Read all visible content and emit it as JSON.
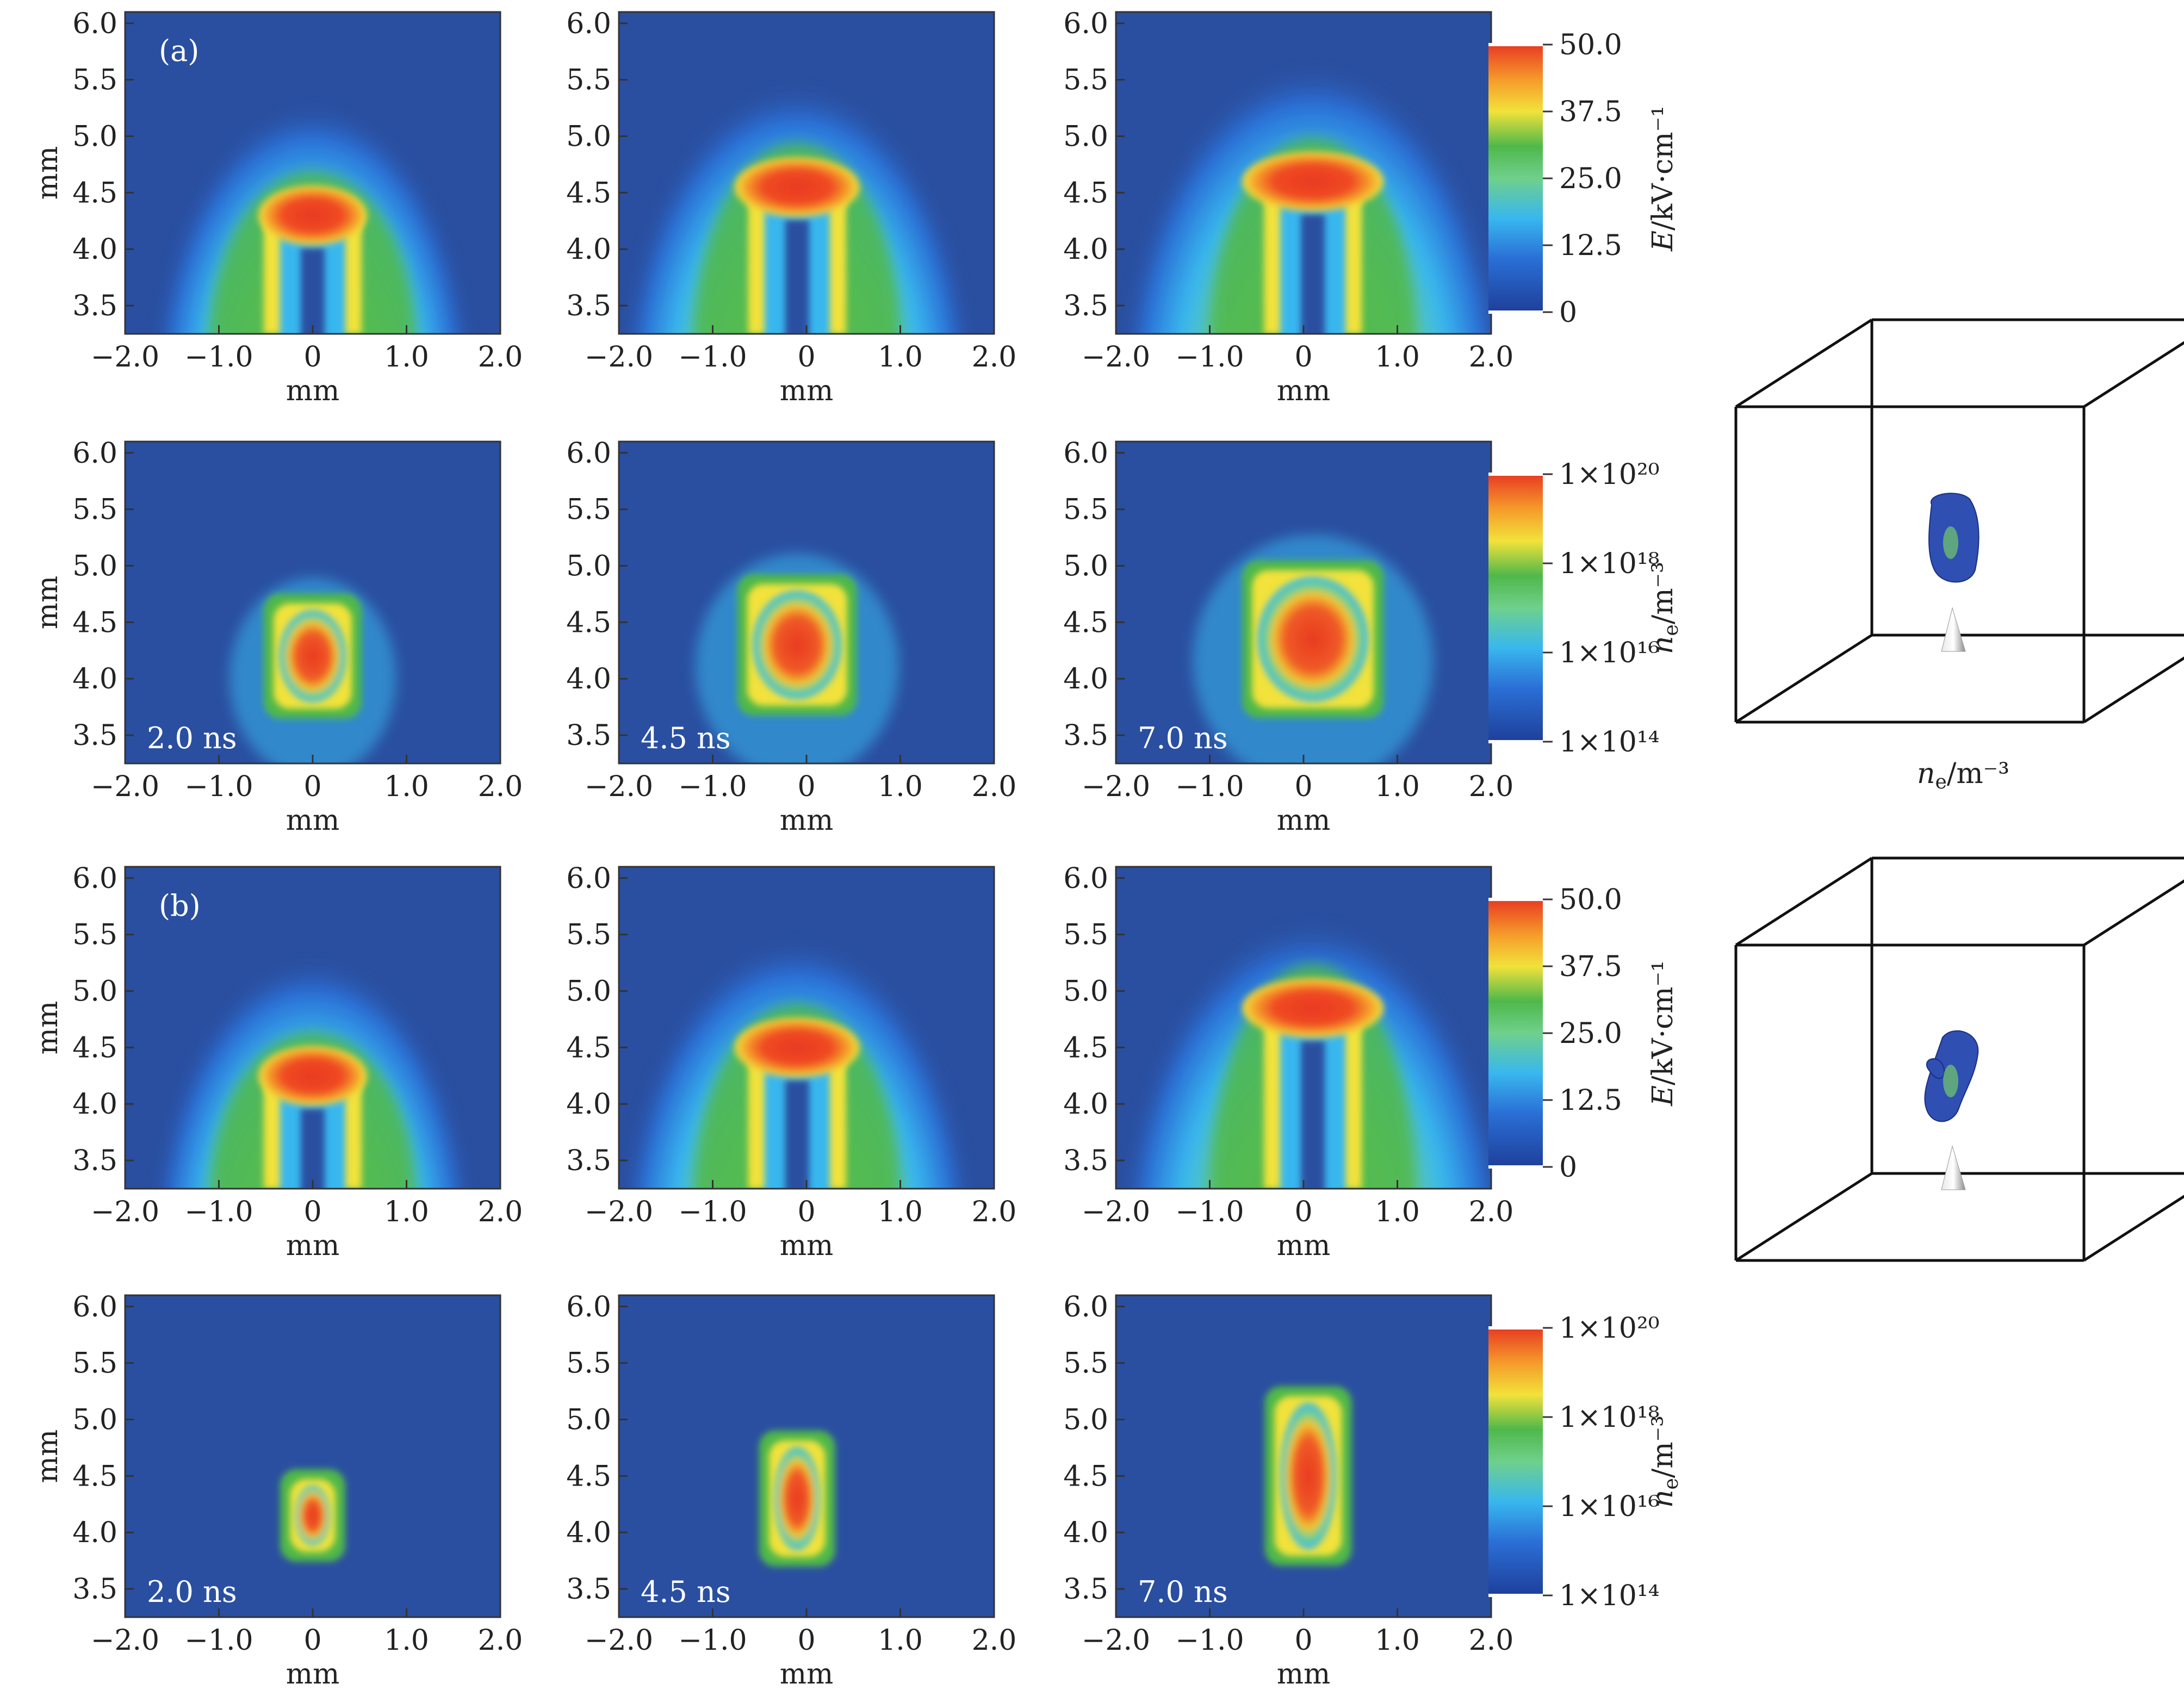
{
  "figure": {
    "panel_letters": [
      "(a)",
      "(b)"
    ],
    "time_labels": [
      "2.0 ns",
      "4.5 ns",
      "7.0 ns"
    ],
    "x_axis_label": "mm",
    "y_axis_label": "mm",
    "x_ticks": [
      "−2.0",
      "−1.0",
      "0",
      "1.0",
      "2.0"
    ],
    "y_ticks": [
      "6.0",
      "5.5",
      "5.0",
      "4.5",
      "4.0",
      "3.5"
    ],
    "field_colorbar": {
      "label_var": "E",
      "label_unit": "/kV·cm⁻¹",
      "ticks": [
        "50.0",
        "37.5",
        "25.0",
        "12.5",
        "0"
      ]
    },
    "density_colorbar": {
      "label_var": "n",
      "label_sub": "e",
      "label_unit": "/m⁻³",
      "ticks": [
        "1×10²⁰",
        "1×10¹⁸",
        "1×10¹⁶",
        "1×10¹⁴"
      ]
    },
    "cube_caption_var": "n",
    "cube_caption_sub": "e",
    "cube_caption_unit": "/m⁻³",
    "colors": {
      "background_blue": "#2a4fa0",
      "jet": [
        "#1f3f9a",
        "#2a6fd6",
        "#38b7ef",
        "#6fd08c",
        "#4fb84a",
        "#f2e23a",
        "#f59a2a",
        "#e83a22"
      ]
    }
  },
  "chart_data": [
    {
      "type": "heatmap",
      "row": "a-field",
      "time": "2.0 ns",
      "xlim": [
        -2.0,
        2.0
      ],
      "ylim": [
        3.25,
        6.1
      ],
      "head_center": [
        0.0,
        4.3
      ],
      "quantity": "E"
    },
    {
      "type": "heatmap",
      "row": "a-field",
      "time": "4.5 ns",
      "xlim": [
        -2.0,
        2.0
      ],
      "ylim": [
        3.25,
        6.1
      ],
      "head_center": [
        -0.1,
        4.55
      ],
      "quantity": "E"
    },
    {
      "type": "heatmap",
      "row": "a-field",
      "time": "7.0 ns",
      "xlim": [
        -2.0,
        2.0
      ],
      "ylim": [
        3.25,
        6.1
      ],
      "head_center": [
        0.1,
        4.6
      ],
      "quantity": "E"
    },
    {
      "type": "heatmap",
      "row": "a-density",
      "time": "2.0 ns",
      "xlim": [
        -2.0,
        2.0
      ],
      "ylim": [
        3.25,
        6.1
      ],
      "blob_center": [
        0.0,
        4.2
      ],
      "quantity": "n_e"
    },
    {
      "type": "heatmap",
      "row": "a-density",
      "time": "4.5 ns",
      "xlim": [
        -2.0,
        2.0
      ],
      "ylim": [
        3.25,
        6.1
      ],
      "blob_center": [
        -0.1,
        4.3
      ],
      "quantity": "n_e"
    },
    {
      "type": "heatmap",
      "row": "a-density",
      "time": "7.0 ns",
      "xlim": [
        -2.0,
        2.0
      ],
      "ylim": [
        3.25,
        6.1
      ],
      "blob_center": [
        0.1,
        4.35
      ],
      "quantity": "n_e"
    },
    {
      "type": "heatmap",
      "row": "b-field",
      "time": "2.0 ns",
      "xlim": [
        -2.0,
        2.0
      ],
      "ylim": [
        3.25,
        6.1
      ],
      "head_center": [
        0.0,
        4.25
      ],
      "quantity": "E"
    },
    {
      "type": "heatmap",
      "row": "b-field",
      "time": "4.5 ns",
      "xlim": [
        -2.0,
        2.0
      ],
      "ylim": [
        3.25,
        6.1
      ],
      "head_center": [
        -0.1,
        4.5
      ],
      "quantity": "E"
    },
    {
      "type": "heatmap",
      "row": "b-field",
      "time": "7.0 ns",
      "xlim": [
        -2.0,
        2.0
      ],
      "ylim": [
        3.25,
        6.1
      ],
      "head_center": [
        0.1,
        4.85
      ],
      "quantity": "E"
    },
    {
      "type": "heatmap",
      "row": "b-density",
      "time": "2.0 ns",
      "xlim": [
        -2.0,
        2.0
      ],
      "ylim": [
        3.25,
        6.1
      ],
      "blob_center": [
        0.0,
        4.15
      ],
      "quantity": "n_e"
    },
    {
      "type": "heatmap",
      "row": "b-density",
      "time": "4.5 ns",
      "xlim": [
        -2.0,
        2.0
      ],
      "ylim": [
        3.25,
        6.1
      ],
      "blob_center": [
        -0.1,
        4.3
      ],
      "quantity": "n_e"
    },
    {
      "type": "heatmap",
      "row": "b-density",
      "time": "7.0 ns",
      "xlim": [
        -2.0,
        2.0
      ],
      "ylim": [
        3.25,
        6.1
      ],
      "blob_center": [
        0.05,
        4.5
      ],
      "quantity": "n_e"
    }
  ]
}
